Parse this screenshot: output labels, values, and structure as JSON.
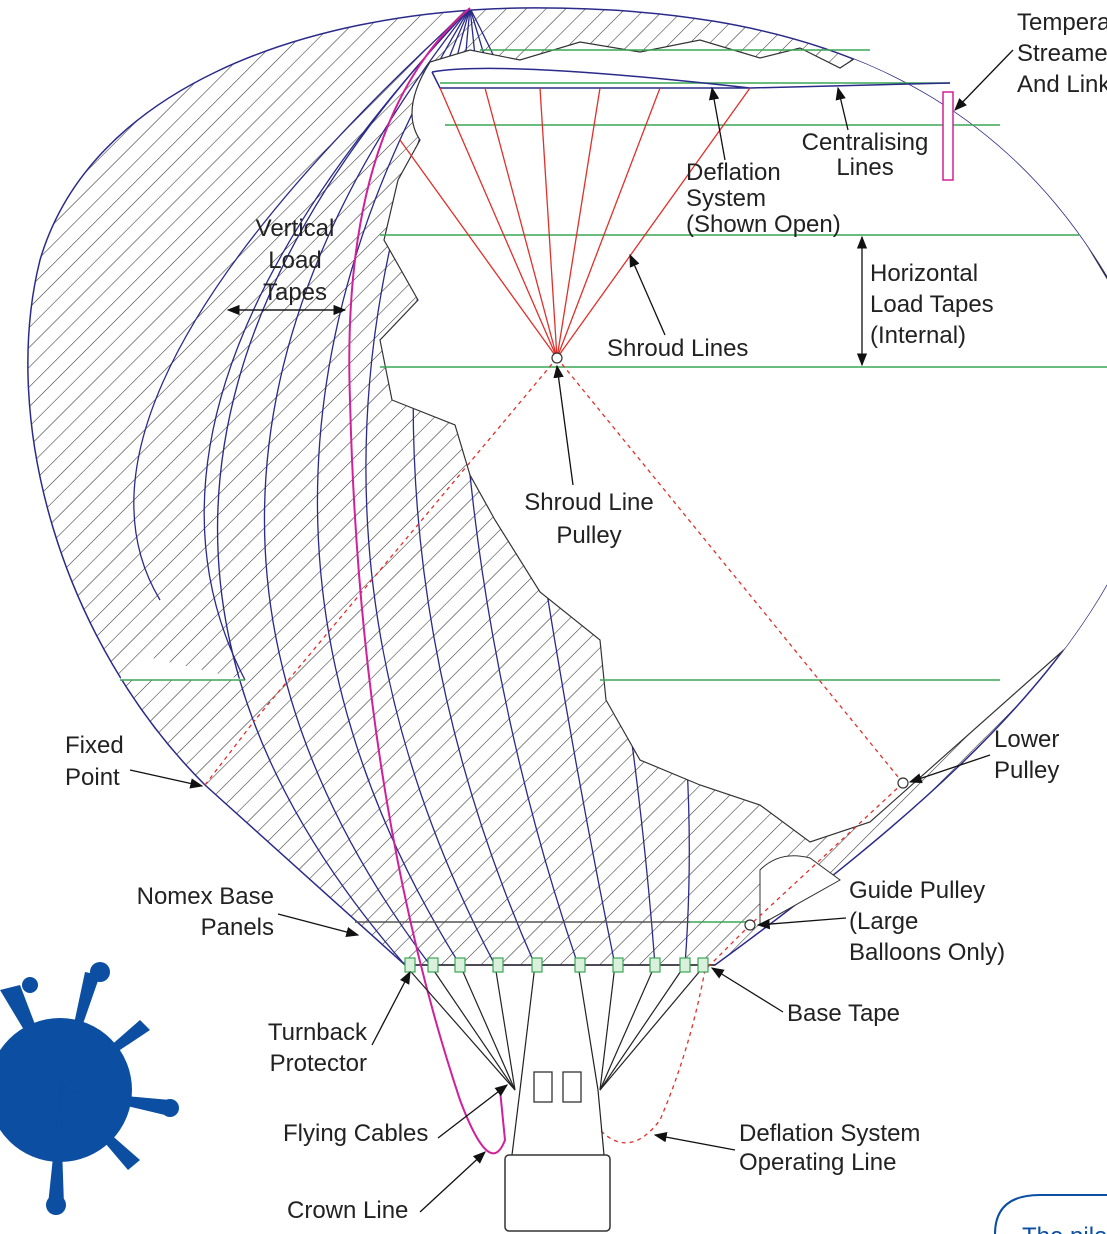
{
  "labels": [
    {
      "lines": [
        "Tempera",
        "Streame",
        "And Link"
      ]
    },
    {
      "lines": [
        "Centralising",
        "Lines"
      ]
    },
    {
      "lines": [
        "Deflation",
        "System",
        "(Shown Open)"
      ]
    },
    {
      "lines": [
        "Vertical",
        "Load",
        "Tapes"
      ]
    },
    {
      "lines": [
        "Horizontal",
        "Load Tapes",
        "(Internal)"
      ]
    },
    {
      "lines": [
        "Shroud Lines"
      ]
    },
    {
      "lines": [
        "Shroud Line",
        "Pulley"
      ]
    },
    {
      "lines": [
        "Fixed",
        "Point"
      ]
    },
    {
      "lines": [
        "Lower",
        "Pulley"
      ]
    },
    {
      "lines": [
        "Nomex Base",
        "Panels"
      ]
    },
    {
      "lines": [
        "Guide Pulley",
        "(Large",
        "Balloons Only)"
      ]
    },
    {
      "lines": [
        "Turnback",
        "Protector"
      ]
    },
    {
      "lines": [
        "Base Tape"
      ]
    },
    {
      "lines": [
        "Flying Cables"
      ]
    },
    {
      "lines": [
        "Deflation System",
        "Operating Line"
      ]
    },
    {
      "lines": [
        "Crown Line"
      ]
    }
  ],
  "note": "The pilo"
}
